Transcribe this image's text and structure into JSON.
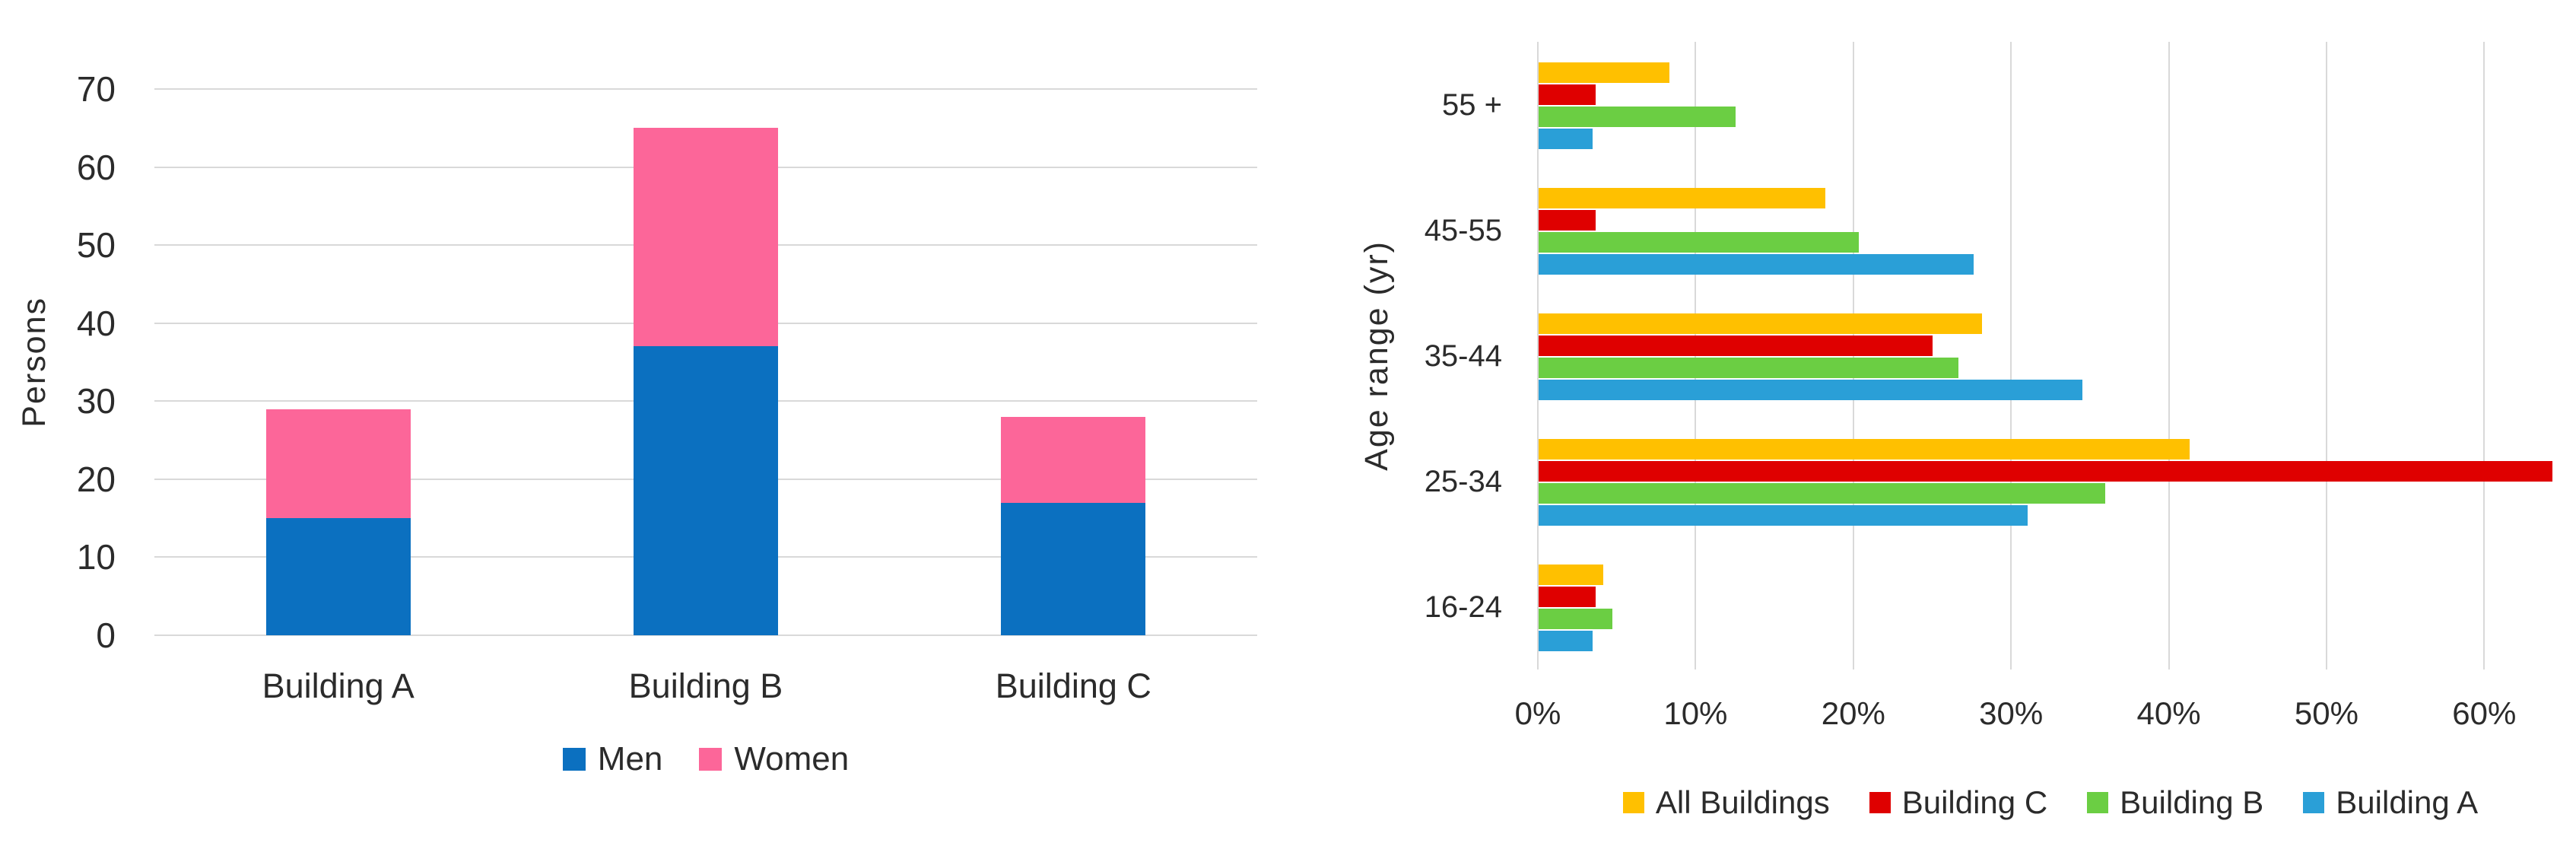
{
  "page": {
    "background": "#FFFFFF"
  },
  "colors": {
    "gridline": "#D9D9D9",
    "axis_line": "#D9D9D9",
    "text": "#2B2B2B"
  },
  "chart_data": [
    {
      "type": "bar",
      "orientation": "vertical",
      "stacked": true,
      "title": "",
      "xlabel": "",
      "ylabel": "Persons",
      "categories": [
        "Building A",
        "Building B",
        "Building C"
      ],
      "series": [
        {
          "name": "Men",
          "color": "#0B70C0",
          "values": [
            15,
            37,
            17
          ]
        },
        {
          "name": "Women",
          "color": "#FC6699",
          "values": [
            14,
            28,
            11
          ]
        }
      ],
      "ylim": [
        0,
        70
      ],
      "ytick_step": 10,
      "yticks": [
        "0",
        "10",
        "20",
        "30",
        "40",
        "50",
        "60",
        "70"
      ],
      "grid": true,
      "legend_position": "bottom",
      "legend": [
        "Men",
        "Women"
      ]
    },
    {
      "type": "bar",
      "orientation": "horizontal",
      "stacked": false,
      "title": "",
      "xlabel": "",
      "ylabel": "Age range (yr)",
      "categories": [
        "55 +",
        "45-55",
        "35-44",
        "25-34",
        "16-24"
      ],
      "series": [
        {
          "name": "All Buildings",
          "color": "#FFC000",
          "values": [
            8.3,
            18.2,
            28.1,
            41.3,
            4.1
          ]
        },
        {
          "name": "Building C",
          "color": "#DF0000",
          "values": [
            3.6,
            3.6,
            25.0,
            64.3,
            3.6
          ]
        },
        {
          "name": "Building B",
          "color": "#6BCE43",
          "values": [
            12.5,
            20.3,
            26.6,
            35.9,
            4.7
          ]
        },
        {
          "name": "Building A",
          "color": "#2A9FD7",
          "values": [
            3.4,
            27.6,
            34.5,
            31.0,
            3.4
          ]
        }
      ],
      "xlim": [
        0,
        65
      ],
      "xtick_step": 10,
      "xticks": [
        "0%",
        "10%",
        "20%",
        "30%",
        "40%",
        "50%",
        "60%"
      ],
      "grid": true,
      "legend_position": "bottom",
      "legend": [
        "All Buildings",
        "Building C",
        "Building B",
        "Building A"
      ]
    }
  ]
}
